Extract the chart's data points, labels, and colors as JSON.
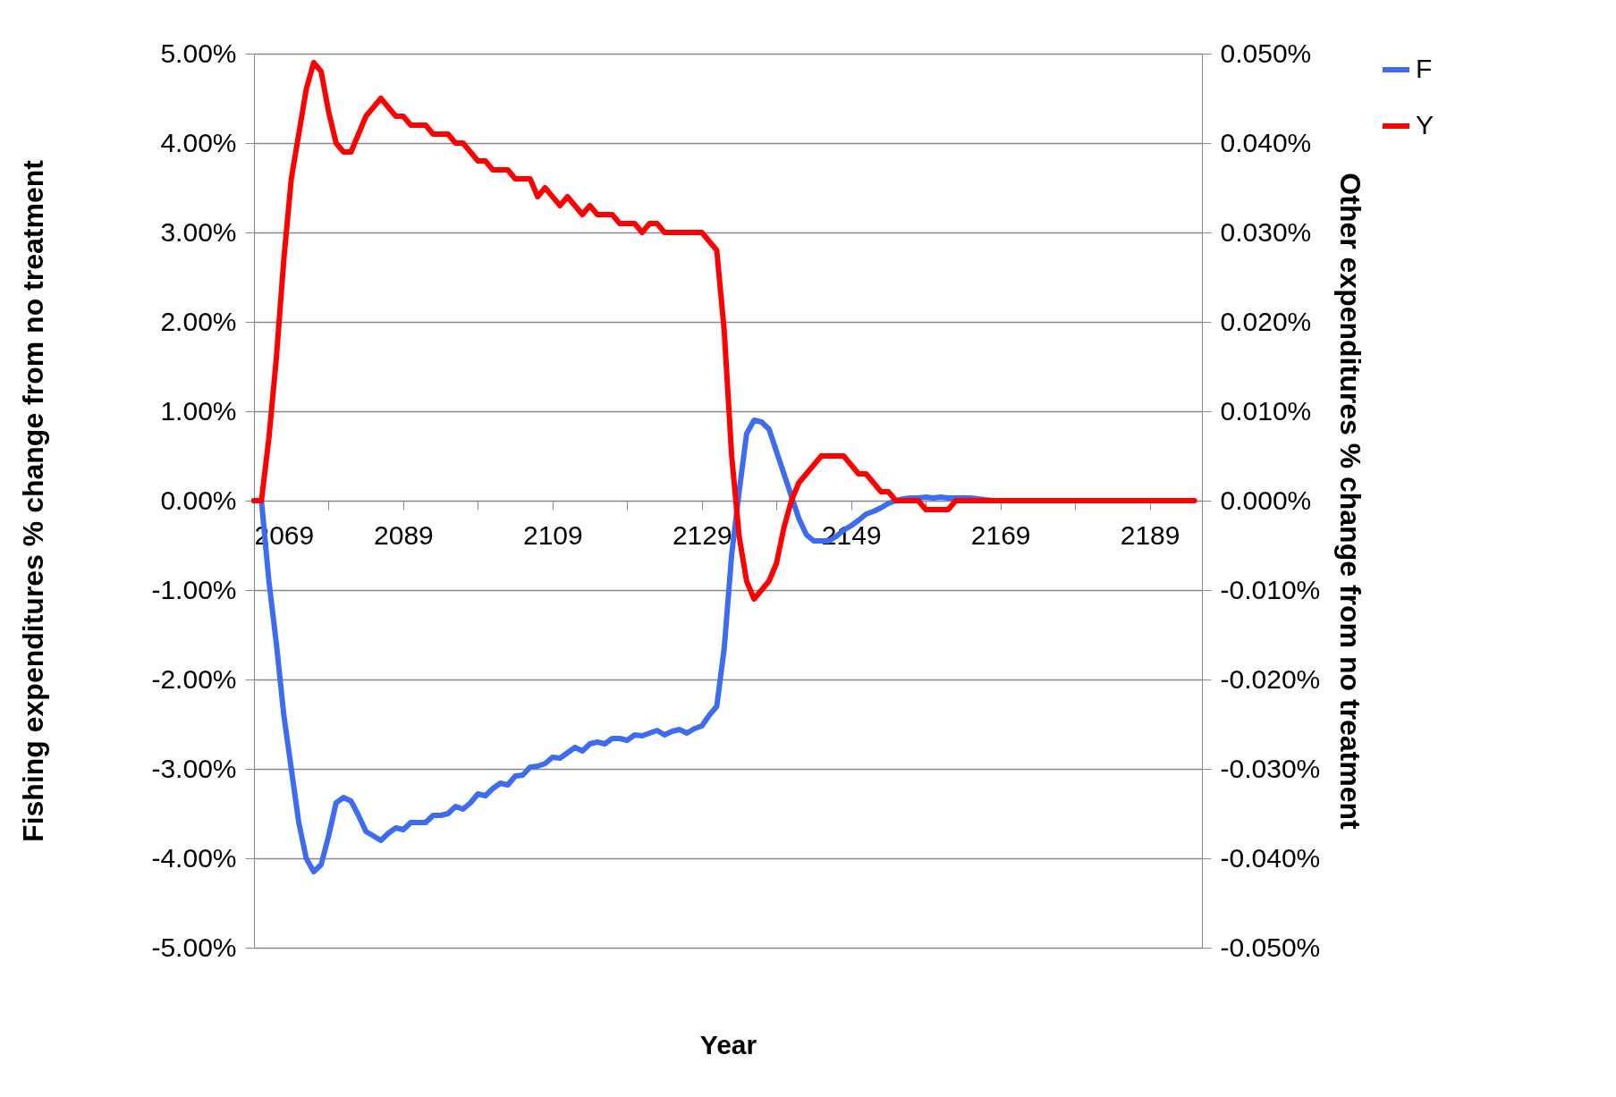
{
  "chart_data": {
    "type": "line",
    "xlabel": "Year",
    "ylabel": "Fishing expenditures % change from no treatment",
    "y2label": "Other expenditures % change from no treatment",
    "x": [
      2069,
      2070,
      2071,
      2072,
      2073,
      2074,
      2075,
      2076,
      2077,
      2078,
      2079,
      2080,
      2081,
      2082,
      2083,
      2084,
      2085,
      2086,
      2087,
      2088,
      2089,
      2090,
      2091,
      2092,
      2093,
      2094,
      2095,
      2096,
      2097,
      2098,
      2099,
      2100,
      2101,
      2102,
      2103,
      2104,
      2105,
      2106,
      2107,
      2108,
      2109,
      2110,
      2111,
      2112,
      2113,
      2114,
      2115,
      2116,
      2117,
      2118,
      2119,
      2120,
      2121,
      2122,
      2123,
      2124,
      2125,
      2126,
      2127,
      2128,
      2129,
      2130,
      2131,
      2132,
      2133,
      2134,
      2135,
      2136,
      2137,
      2138,
      2139,
      2140,
      2141,
      2142,
      2143,
      2144,
      2145,
      2146,
      2147,
      2148,
      2149,
      2150,
      2151,
      2152,
      2153,
      2154,
      2155,
      2156,
      2157,
      2158,
      2159,
      2160,
      2161,
      2162,
      2163,
      2164,
      2165,
      2166,
      2167,
      2168,
      2169,
      2170,
      2171,
      2172,
      2173,
      2174,
      2175,
      2176,
      2177,
      2178,
      2179,
      2180,
      2181,
      2182,
      2183,
      2184,
      2185,
      2186,
      2187,
      2188,
      2189,
      2190,
      2191,
      2192,
      2193,
      2194,
      2195
    ],
    "series": [
      {
        "name": "F",
        "color": "#3d6cf0",
        "values": [
          0,
          0,
          -0.9,
          -1.6,
          -2.4,
          -3.0,
          -3.6,
          -4.0,
          -4.15,
          -4.07,
          -3.75,
          -3.38,
          -3.32,
          -3.36,
          -3.52,
          -3.7,
          -3.75,
          -3.8,
          -3.72,
          -3.66,
          -3.68,
          -3.6,
          -3.6,
          -3.6,
          -3.52,
          -3.52,
          -3.5,
          -3.42,
          -3.45,
          -3.38,
          -3.28,
          -3.3,
          -3.22,
          -3.16,
          -3.18,
          -3.08,
          -3.07,
          -2.98,
          -2.97,
          -2.94,
          -2.87,
          -2.88,
          -2.82,
          -2.76,
          -2.8,
          -2.72,
          -2.7,
          -2.72,
          -2.66,
          -2.66,
          -2.68,
          -2.62,
          -2.63,
          -2.6,
          -2.57,
          -2.62,
          -2.58,
          -2.56,
          -2.6,
          -2.55,
          -2.52,
          -2.4,
          -2.3,
          -1.65,
          -0.6,
          0.1,
          0.75,
          0.9,
          0.88,
          0.8,
          0.55,
          0.3,
          0.05,
          -0.2,
          -0.38,
          -0.45,
          -0.45,
          -0.45,
          -0.4,
          -0.33,
          -0.28,
          -0.22,
          -0.15,
          -0.12,
          -0.08,
          -0.03,
          0,
          0.02,
          0.03,
          0.03,
          0.04,
          0.03,
          0.04,
          0.03,
          0.03,
          0.03,
          0.03,
          0.02,
          0.01,
          0,
          0,
          null,
          null,
          null,
          null,
          null,
          null,
          null,
          null,
          null,
          null,
          null,
          null,
          null,
          null,
          null,
          null,
          null,
          null,
          null,
          null,
          null,
          null,
          null,
          null,
          null,
          null
        ]
      },
      {
        "name": "Y",
        "color": "#ff0000",
        "axis": "y2",
        "values": [
          0,
          0,
          0.007,
          0.016,
          0.027,
          0.036,
          0.041,
          0.046,
          0.049,
          0.048,
          0.0435,
          0.04,
          0.039,
          0.039,
          0.041,
          0.043,
          0.044,
          0.045,
          0.044,
          0.043,
          0.043,
          0.042,
          0.042,
          0.042,
          0.041,
          0.041,
          0.041,
          0.04,
          0.04,
          0.039,
          0.038,
          0.038,
          0.037,
          0.037,
          0.037,
          0.036,
          0.036,
          0.036,
          0.034,
          0.035,
          0.034,
          0.033,
          0.034,
          0.033,
          0.032,
          0.033,
          0.032,
          0.032,
          0.032,
          0.031,
          0.031,
          0.031,
          0.03,
          0.031,
          0.031,
          0.03,
          0.03,
          0.03,
          0.03,
          0.03,
          0.03,
          0.029,
          0.028,
          0.019,
          0.005,
          -0.004,
          -0.009,
          -0.011,
          -0.01,
          -0.009,
          -0.007,
          -0.003,
          0,
          0.002,
          0.003,
          0.004,
          0.005,
          0.005,
          0.005,
          0.005,
          0.004,
          0.003,
          0.003,
          0.002,
          0.001,
          0.001,
          0,
          0,
          0,
          0,
          -0.001,
          -0.001,
          -0.001,
          -0.001,
          0,
          0,
          0,
          0,
          0,
          0,
          0,
          0,
          0,
          0,
          0,
          0,
          0,
          0,
          0,
          0,
          0,
          0,
          0,
          0,
          0,
          0,
          0,
          0,
          0,
          0,
          0,
          0,
          0,
          0,
          0,
          0,
          0
        ]
      }
    ],
    "xlim": [
      2069,
      2196
    ],
    "xticks": [
      2069,
      {
        "value": 2079,
        "label": null
      },
      2089,
      {
        "value": 2099,
        "label": null
      },
      2109,
      {
        "value": 2119,
        "label": null
      },
      2129,
      {
        "value": 2139,
        "label": null
      },
      2149,
      {
        "value": 2159,
        "label": null
      },
      2169,
      {
        "value": 2179,
        "label": null
      },
      2189
    ],
    "ylim": [
      -5,
      5
    ],
    "yticks": [
      {
        "value": -5,
        "label": "-5.00%"
      },
      {
        "value": -4,
        "label": "-4.00%"
      },
      {
        "value": -3,
        "label": "-3.00%"
      },
      {
        "value": -2,
        "label": "-2.00%"
      },
      {
        "value": -1,
        "label": "-1.00%"
      },
      {
        "value": 0,
        "label": "0.00%"
      },
      {
        "value": 1,
        "label": "1.00%"
      },
      {
        "value": 2,
        "label": "2.00%"
      },
      {
        "value": 3,
        "label": "3.00%"
      },
      {
        "value": 4,
        "label": "4.00%"
      },
      {
        "value": 5,
        "label": "5.00%"
      }
    ],
    "y2lim": [
      -0.05,
      0.05
    ],
    "y2ticks": [
      {
        "value": -0.05,
        "label": "-0.050%"
      },
      {
        "value": -0.04,
        "label": "-0.040%"
      },
      {
        "value": -0.03,
        "label": "-0.030%"
      },
      {
        "value": -0.02,
        "label": "-0.020%"
      },
      {
        "value": -0.01,
        "label": "-0.010%"
      },
      {
        "value": 0,
        "label": "0.000%"
      },
      {
        "value": 0.01,
        "label": "0.010%"
      },
      {
        "value": 0.02,
        "label": "0.020%"
      },
      {
        "value": 0.03,
        "label": "0.030%"
      },
      {
        "value": 0.04,
        "label": "0.040%"
      },
      {
        "value": 0.05,
        "label": "0.050%"
      }
    ],
    "grid": "y",
    "legend": "right",
    "line_style": "solid",
    "marker": "none"
  }
}
